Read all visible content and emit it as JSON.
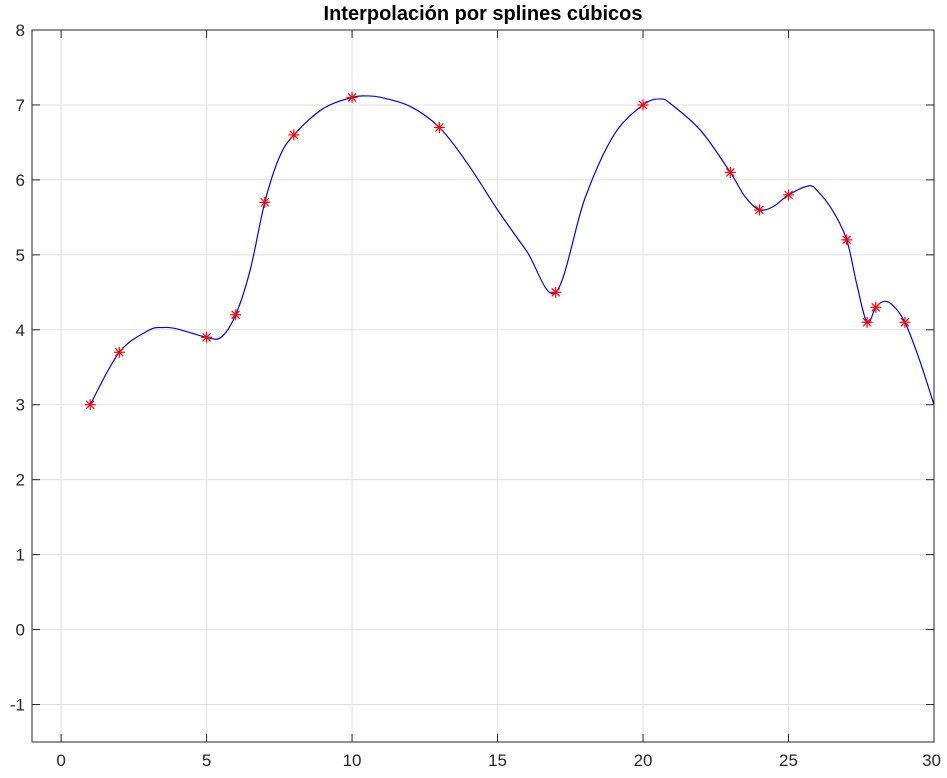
{
  "chart_data": {
    "type": "line",
    "title": "Interpolación por splines cúbicos",
    "xlabel": "",
    "ylabel": "",
    "xlim": [
      -1,
      30
    ],
    "ylim": [
      -1.5,
      8
    ],
    "xticks": [
      0,
      5,
      10,
      15,
      20,
      25,
      30
    ],
    "yticks": [
      -1,
      0,
      1,
      2,
      3,
      4,
      5,
      6,
      7,
      8
    ],
    "xtick_labels": [
      "0",
      "5",
      "10",
      "15",
      "20",
      "25",
      "30"
    ],
    "ytick_labels": [
      "-1",
      "0",
      "1",
      "2",
      "3",
      "4",
      "5",
      "6",
      "7",
      "8"
    ],
    "grid": true,
    "legend": "none",
    "series": [
      {
        "style": "line",
        "color": "#0000ff",
        "x": [
          1,
          2,
          3,
          3.5,
          4,
          5,
          5.5,
          6,
          6.5,
          7,
          7.5,
          8,
          9,
          10,
          10.5,
          11,
          12,
          13,
          14,
          15,
          16,
          17,
          18,
          19,
          20,
          20.6,
          21,
          22,
          23,
          23.5,
          24,
          24.5,
          25,
          25.7,
          26,
          26.5,
          27,
          27.35,
          27.7,
          28,
          28.3,
          28.6,
          29,
          29.5,
          30
        ],
        "y": [
          3.0,
          3.7,
          3.99,
          4.03,
          4.01,
          3.9,
          3.9,
          4.2,
          4.8,
          5.7,
          6.3,
          6.6,
          6.95,
          7.1,
          7.12,
          7.1,
          6.98,
          6.7,
          6.2,
          5.6,
          5.05,
          4.5,
          5.75,
          6.6,
          7.0,
          7.08,
          7.0,
          6.65,
          6.1,
          5.78,
          5.6,
          5.65,
          5.8,
          5.92,
          5.85,
          5.6,
          5.2,
          4.6,
          4.1,
          4.3,
          4.38,
          4.32,
          4.1,
          3.6,
          3.0
        ]
      },
      {
        "style": "markers",
        "marker": "asterisk",
        "color": "#ff0000",
        "x": [
          1,
          2,
          5,
          6,
          7,
          8,
          10,
          13,
          17,
          20,
          23,
          24,
          25,
          27,
          27.7,
          28,
          29
        ],
        "y": [
          3.0,
          3.7,
          3.9,
          4.2,
          5.7,
          6.6,
          7.1,
          6.7,
          4.5,
          7.0,
          6.1,
          5.6,
          5.8,
          5.2,
          4.1,
          4.3,
          4.1
        ]
      }
    ]
  }
}
